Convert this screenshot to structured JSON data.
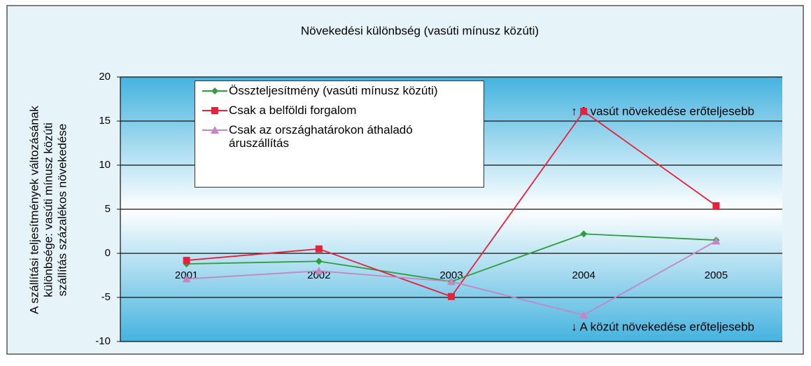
{
  "chart_data": {
    "type": "line",
    "title": "Növekedési különbség (vasúti mínusz közúti)",
    "y_label": [
      "A szállítási teljesítmények változásának",
      "különbsége: vasúti mínusz közúti",
      "szállítás százalékos növekedése"
    ],
    "annotations": [
      "↑ A vasút növekedése erőteljesebb",
      "↓ A közút növekedése erőteljesebb"
    ],
    "categories": [
      "2001",
      "2002",
      "2003",
      "2004",
      "2005"
    ],
    "series": [
      {
        "name": "Összteljesítmény (vasúti mínusz közúti)",
        "color": "#2e9e3e",
        "marker": "diamond",
        "values": [
          -1.2,
          -0.9,
          -3.2,
          2.2,
          1.5
        ]
      },
      {
        "name": "Csak a belföldi forgalom",
        "color": "#e8203a",
        "marker": "square",
        "values": [
          -0.8,
          0.5,
          -4.9,
          16.1,
          5.4
        ]
      },
      {
        "name": "Csak az országhatárokon áthaladó áruszállítás",
        "color": "#c486c4",
        "marker": "triangle",
        "values": [
          -2.9,
          -2.0,
          -3.2,
          -7.0,
          1.4
        ]
      }
    ],
    "ylim": [
      -10,
      20
    ],
    "yticks": [
      -10,
      -5,
      0,
      5,
      10,
      15,
      20
    ],
    "grid": true
  }
}
